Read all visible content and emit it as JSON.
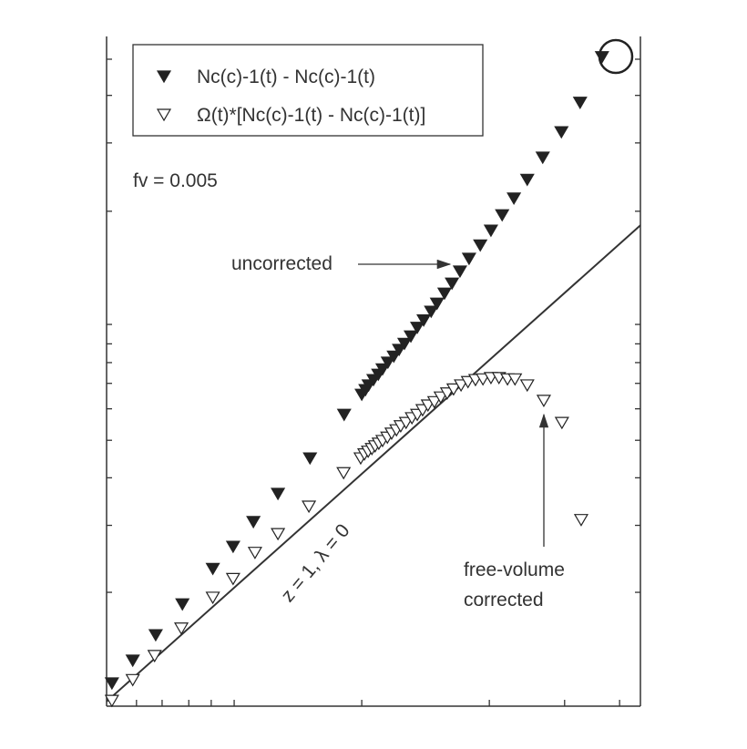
{
  "chart_data": {
    "type": "scatter",
    "xlim": [
      0,
      100
    ],
    "ylim": [
      0,
      100
    ],
    "xticks": [
      5.6,
      10.4,
      15.4,
      19.6,
      23.9,
      47.8,
      71.7,
      85.8,
      96.1
    ],
    "yticks": [
      17.0,
      27.0,
      34.1,
      39.7,
      44.4,
      48.2,
      51.3,
      54.1,
      57.0,
      73.9,
      84.1,
      91.2,
      96.6
    ],
    "legend": "upper left",
    "series": [
      {
        "name": "Nc(c)-1(t) - Nc(c)-1(t)",
        "marker": "filled",
        "color": "#222222",
        "x": [
          1.0,
          4.9,
          9.2,
          14.2,
          19.9,
          23.7,
          27.5,
          32.1,
          38.1,
          44.5,
          47.8,
          48.5,
          49.1,
          50.0,
          50.9,
          51.7,
          52.7,
          53.8,
          54.8,
          55.8,
          57.0,
          58.2,
          59.4,
          60.8,
          61.9,
          63.3,
          64.7,
          66.2,
          67.9,
          70.0,
          72.0,
          74.1,
          76.3,
          78.8,
          81.7,
          85.2,
          88.7,
          92.8
        ],
        "values": [
          3.4,
          6.8,
          10.6,
          15.2,
          20.5,
          23.8,
          27.5,
          31.7,
          37.0,
          43.5,
          46.5,
          47.2,
          47.9,
          48.7,
          49.5,
          50.3,
          51.3,
          52.2,
          53.2,
          54.1,
          55.2,
          56.5,
          57.6,
          58.9,
          60.1,
          61.6,
          63.1,
          64.9,
          66.8,
          68.8,
          71.0,
          73.3,
          75.8,
          78.6,
          81.9,
          85.7,
          90.1,
          96.9
        ]
      },
      {
        "name": "Ω(t)*[Nc(c)-1(t) - Nc(c)-1(t)]",
        "marker": "open",
        "color": "#222222",
        "x": [
          1.0,
          4.9,
          9.0,
          14.0,
          19.9,
          23.7,
          27.8,
          32.1,
          37.9,
          44.4,
          47.6,
          48.3,
          49.0,
          49.7,
          50.3,
          51.0,
          51.7,
          52.6,
          53.4,
          54.3,
          55.1,
          56.1,
          57.2,
          58.2,
          59.2,
          60.2,
          61.4,
          62.6,
          63.8,
          65.0,
          66.4,
          67.7,
          69.1,
          70.5,
          72.0,
          73.5,
          75.1,
          76.5,
          78.8,
          81.9,
          85.3,
          88.9
        ],
        "values": [
          0.8,
          3.9,
          7.5,
          11.6,
          16.2,
          19.0,
          22.9,
          25.7,
          29.8,
          34.8,
          37.0,
          37.6,
          38.0,
          38.4,
          38.8,
          39.2,
          39.6,
          40.1,
          40.7,
          41.2,
          41.8,
          42.3,
          43.0,
          43.5,
          44.2,
          44.9,
          45.4,
          46.1,
          46.7,
          47.3,
          47.9,
          48.4,
          48.7,
          48.8,
          49.0,
          49.0,
          48.8,
          48.8,
          47.9,
          45.6,
          42.3,
          27.8
        ]
      }
    ],
    "reference_line": {
      "label": "z = 1, λ = 0",
      "x": [
        0,
        100
      ],
      "values": [
        0.7,
        71.8
      ]
    },
    "annotations": {
      "parameter": "fv = 0.005",
      "uncorrected": "uncorrected",
      "corrected": [
        "free-volume",
        "corrected"
      ]
    }
  }
}
